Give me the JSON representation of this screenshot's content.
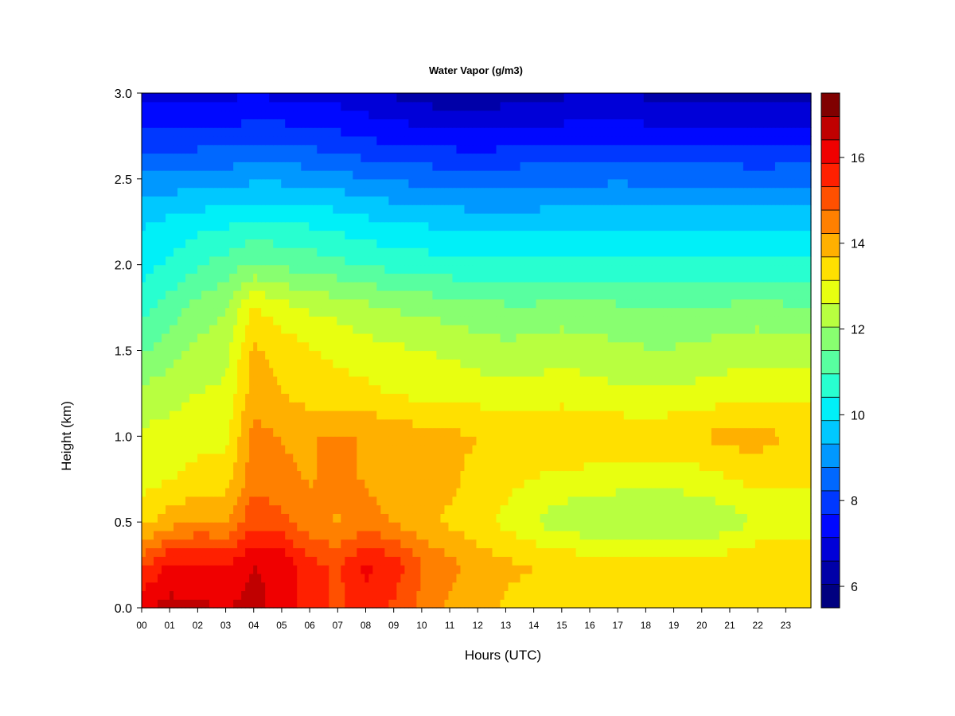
{
  "chart_data": {
    "type": "heatmap",
    "title": "Water Vapor (g/m3)",
    "xlabel": "Hours (UTC)",
    "ylabel": "Height (km)",
    "xlim": [
      0,
      23.9
    ],
    "ylim": [
      0,
      3.0
    ],
    "x_ticks": [
      0,
      1,
      2,
      3,
      4,
      5,
      6,
      7,
      8,
      9,
      10,
      11,
      12,
      13,
      14,
      15,
      16,
      17,
      18,
      19,
      20,
      21,
      22,
      23
    ],
    "x_tick_labels": [
      "00",
      "01",
      "02",
      "03",
      "04",
      "05",
      "06",
      "07",
      "08",
      "09",
      "10",
      "11",
      "12",
      "13",
      "14",
      "15",
      "16",
      "17",
      "18",
      "19",
      "20",
      "21",
      "22",
      "23"
    ],
    "y_ticks": [
      0.0,
      0.5,
      1.0,
      1.5,
      2.0,
      2.5,
      3.0
    ],
    "y_tick_labels": [
      "0.0",
      "0.5",
      "1.0",
      "1.5",
      "2.0",
      "2.5",
      "3.0"
    ],
    "colorbar": {
      "range": [
        5.5,
        17.5
      ],
      "ticks": [
        6,
        8,
        10,
        12,
        14,
        16
      ],
      "tick_labels": [
        "6",
        "8",
        "10",
        "12",
        "14",
        "16"
      ],
      "colors": [
        "#000080",
        "#0000a8",
        "#0000d8",
        "#0008ff",
        "#0038ff",
        "#0068ff",
        "#0098ff",
        "#00c8ff",
        "#00f0f8",
        "#28ffd0",
        "#58ffa0",
        "#88ff70",
        "#b8ff40",
        "#e8ff10",
        "#ffe000",
        "#ffb000",
        "#ff8000",
        "#ff5000",
        "#ff2000",
        "#f00000",
        "#c00000",
        "#800000"
      ]
    },
    "z_unit": "g/m3",
    "heights_km": [
      0.0,
      0.25,
      0.5,
      0.75,
      1.0,
      1.25,
      1.5,
      1.75,
      2.0,
      2.25,
      2.5,
      2.75,
      3.0
    ],
    "hours": [
      0,
      1,
      2,
      3,
      4,
      5,
      6,
      7,
      8,
      9,
      10,
      11,
      12,
      13,
      14,
      15,
      16,
      17,
      18,
      19,
      20,
      21,
      22,
      23
    ],
    "values": [
      [
        16.3,
        16.6,
        16.5,
        16.4,
        16.6,
        16.2,
        15.6,
        15.2,
        15.6,
        15.2,
        14.6,
        14.1,
        13.9,
        13.6,
        13.4,
        13.3,
        13.2,
        13.2,
        13.2,
        13.2,
        13.2,
        13.3,
        13.4,
        13.3
      ],
      [
        15.2,
        16.0,
        16.0,
        15.9,
        16.4,
        16.3,
        15.5,
        15.2,
        16.0,
        15.7,
        14.8,
        14.4,
        14.0,
        13.8,
        13.7,
        13.7,
        13.4,
        13.3,
        13.4,
        13.3,
        13.3,
        13.5,
        13.6,
        13.4
      ],
      [
        13.5,
        14.0,
        14.3,
        14.2,
        15.2,
        15.0,
        14.4,
        14.2,
        14.4,
        14.2,
        13.8,
        13.6,
        13.3,
        13.0,
        12.6,
        12.2,
        12.2,
        12.1,
        12.1,
        12.0,
        12.1,
        12.3,
        12.7,
        12.9
      ],
      [
        12.9,
        13.1,
        13.3,
        13.4,
        14.6,
        14.3,
        14.2,
        14.3,
        14.2,
        14.0,
        13.9,
        13.8,
        13.5,
        13.3,
        13.1,
        13.0,
        12.9,
        12.8,
        12.8,
        12.8,
        12.9,
        13.1,
        13.3,
        13.2
      ],
      [
        12.7,
        12.8,
        13.0,
        13.0,
        14.4,
        14.2,
        14.2,
        14.3,
        14.2,
        14.1,
        13.9,
        13.8,
        13.7,
        13.6,
        13.6,
        13.7,
        13.6,
        13.6,
        13.5,
        13.6,
        13.7,
        13.9,
        13.9,
        13.7
      ],
      [
        12.2,
        12.4,
        12.6,
        12.7,
        14.0,
        13.7,
        13.4,
        13.4,
        13.3,
        13.1,
        13.0,
        13.0,
        12.9,
        12.8,
        12.8,
        12.9,
        12.8,
        12.7,
        12.7,
        12.7,
        12.8,
        12.9,
        13.0,
        12.9
      ],
      [
        11.4,
        11.8,
        12.2,
        12.4,
        13.8,
        13.5,
        13.2,
        13.0,
        12.8,
        12.7,
        12.6,
        12.5,
        12.3,
        12.2,
        12.3,
        12.4,
        12.3,
        12.2,
        12.1,
        12.1,
        12.2,
        12.3,
        12.4,
        12.3
      ],
      [
        10.8,
        11.2,
        11.7,
        12.0,
        13.2,
        12.8,
        12.5,
        12.4,
        12.2,
        12.0,
        11.9,
        11.8,
        11.7,
        11.6,
        11.6,
        11.7,
        11.6,
        11.6,
        11.5,
        11.5,
        11.6,
        11.6,
        11.7,
        11.6
      ],
      [
        10.2,
        10.5,
        10.9,
        11.2,
        11.6,
        11.4,
        11.3,
        11.1,
        10.9,
        10.8,
        10.7,
        10.6,
        10.5,
        10.5,
        10.5,
        10.6,
        10.6,
        10.6,
        10.5,
        10.5,
        10.5,
        10.5,
        10.5,
        10.5
      ],
      [
        9.8,
        10.0,
        10.2,
        10.3,
        10.5,
        10.4,
        10.3,
        10.2,
        10.0,
        9.9,
        9.8,
        9.7,
        9.6,
        9.6,
        9.6,
        9.7,
        9.7,
        9.7,
        9.7,
        9.7,
        9.7,
        9.7,
        9.7,
        9.7
      ],
      [
        9.0,
        9.0,
        9.0,
        9.1,
        9.2,
        9.2,
        9.1,
        9.0,
        8.8,
        8.7,
        8.6,
        8.6,
        8.5,
        8.6,
        8.6,
        8.6,
        8.6,
        8.7,
        8.6,
        8.6,
        8.6,
        8.6,
        8.6,
        8.6
      ],
      [
        7.8,
        7.8,
        7.9,
        7.9,
        8.0,
        8.0,
        7.9,
        7.8,
        7.6,
        7.5,
        7.4,
        7.3,
        7.3,
        7.3,
        7.4,
        7.4,
        7.5,
        7.5,
        7.4,
        7.4,
        7.4,
        7.4,
        7.3,
        7.4
      ],
      [
        6.9,
        6.9,
        6.9,
        7.0,
        7.1,
        7.0,
        6.9,
        6.9,
        6.7,
        6.5,
        6.3,
        6.2,
        6.2,
        6.3,
        6.4,
        6.5,
        6.6,
        6.6,
        6.5,
        6.5,
        6.4,
        6.4,
        6.4,
        6.5
      ]
    ]
  }
}
